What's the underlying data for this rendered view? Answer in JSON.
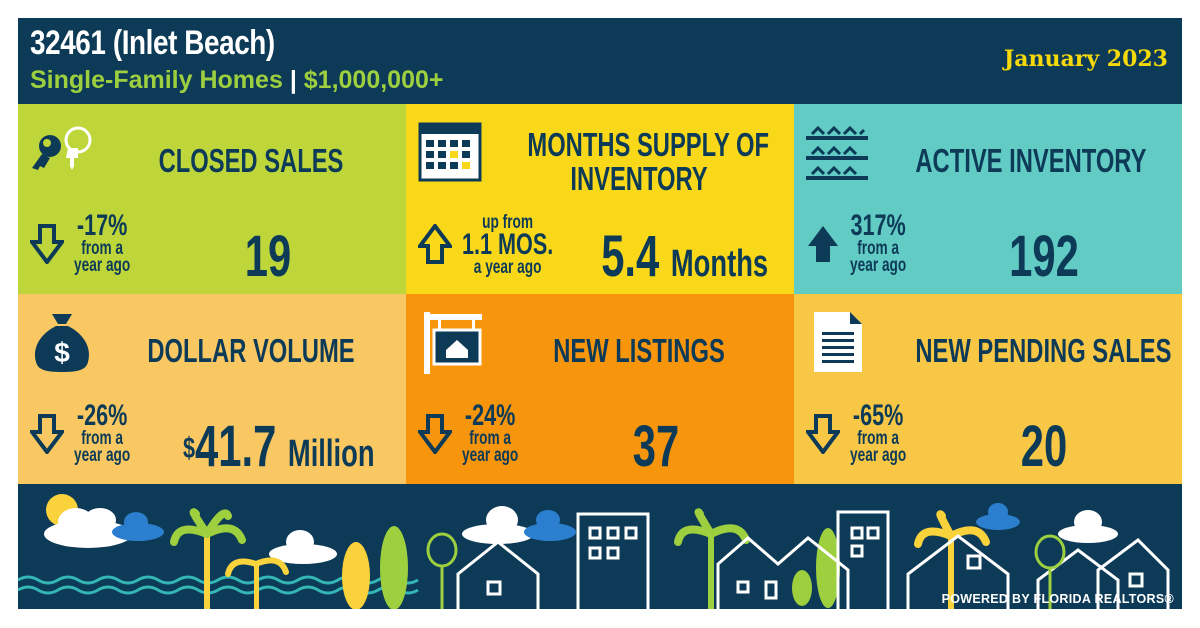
{
  "header": {
    "title": "32461 (Inlet Beach)",
    "subtitle_left": "Single-Family Homes",
    "subtitle_sep": "|",
    "subtitle_right": "$1,000,000+",
    "date": "January 2023"
  },
  "tiles": [
    {
      "title_1": "CLOSED SALES",
      "pct": "-17%",
      "lbl_1": "from a",
      "lbl_2": "year ago",
      "value": "19",
      "icon": "keys-icon",
      "direction": "down",
      "color": "#bfd63a"
    },
    {
      "title_1": "MONTHS SUPPLY OF",
      "title_2": "INVENTORY",
      "pre": "up from",
      "pct": "1.1 MOS.",
      "lbl_2": "a year ago",
      "value": "5.4",
      "unit": "Months",
      "icon": "calendar-icon",
      "direction": "up",
      "color": "#f9d819"
    },
    {
      "title_1": "ACTIVE INVENTORY",
      "pct": "317%",
      "lbl_1": "from a",
      "lbl_2": "year ago",
      "value": "192",
      "icon": "houses-grid-icon",
      "direction": "up",
      "color": "#62cbc4"
    },
    {
      "title_1": "DOLLAR VOLUME",
      "pct": "-26%",
      "lbl_1": "from a",
      "lbl_2": "year ago",
      "currency": "$",
      "value": "41.7",
      "unit": "Million",
      "icon": "money-bag-icon",
      "direction": "down",
      "color": "#f9c863"
    },
    {
      "title_1": "NEW LISTINGS",
      "pct": "-24%",
      "lbl_1": "from a",
      "lbl_2": "year ago",
      "value": "37",
      "icon": "sale-sign-icon",
      "direction": "down",
      "color": "#f7950d"
    },
    {
      "title_1": "NEW PENDING SALES",
      "pct": "-65%",
      "lbl_1": "from a",
      "lbl_2": "year ago",
      "value": "20",
      "icon": "document-icon",
      "direction": "down",
      "color": "#f9c746"
    }
  ],
  "footer": {
    "powered_by": "POWERED BY FLORIDA REALTORS®"
  },
  "colors": {
    "navy": "#0d3b57",
    "lime": "#9dcf3f",
    "gold": "#f5d90a"
  }
}
